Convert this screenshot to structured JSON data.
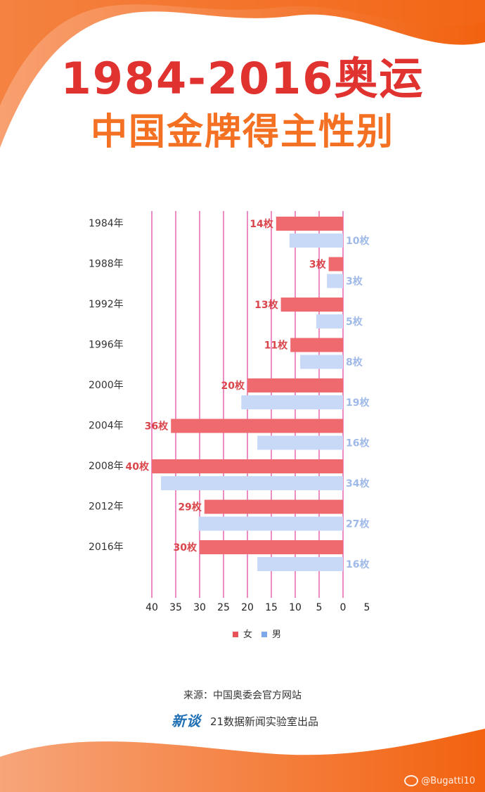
{
  "title": {
    "line1": "1984-2016奥运",
    "line2": "中国金牌得主性别"
  },
  "colors": {
    "title_red": "#e0322f",
    "title_orange": "#f47022",
    "female_bar": "#ee6a6f",
    "male_bar": "#c8d9f8",
    "grid_line": "#d81b8c",
    "deco": "#f57b2a"
  },
  "chart_data": {
    "type": "bar",
    "orientation": "horizontal",
    "categories": [
      "1984年",
      "1988年",
      "1992年",
      "1996年",
      "2000年",
      "2004年",
      "2008年",
      "2012年",
      "2016年"
    ],
    "series": [
      {
        "name": "女",
        "values": [
          14,
          3,
          13,
          11,
          20,
          36,
          40,
          29,
          30
        ],
        "labels": [
          "14枚",
          "3枚",
          "13枚",
          "11枚",
          "20枚",
          "36枚",
          "40枚",
          "29枚",
          "30枚"
        ]
      },
      {
        "name": "男",
        "values": [
          10,
          3,
          5,
          8,
          19,
          16,
          34,
          27,
          16
        ],
        "labels": [
          "10枚",
          "3枚",
          "5枚",
          "8枚",
          "19枚",
          "16枚",
          "34枚",
          "27枚",
          "16枚"
        ]
      }
    ],
    "x_ticks": [
      "40",
      "35",
      "30",
      "25",
      "20",
      "15",
      "10",
      "5",
      "0",
      "5"
    ],
    "xlim": [
      40,
      -5
    ],
    "x_reversed": true,
    "grid": true,
    "legend": "bottom-center"
  },
  "footer": {
    "source": "来源：中国奥委会官方网站",
    "brand_logo": "新谈",
    "credit": "21数据新闻实验室出品"
  },
  "watermark": {
    "icon": "weibo-icon",
    "text": "@Bugatti10"
  }
}
